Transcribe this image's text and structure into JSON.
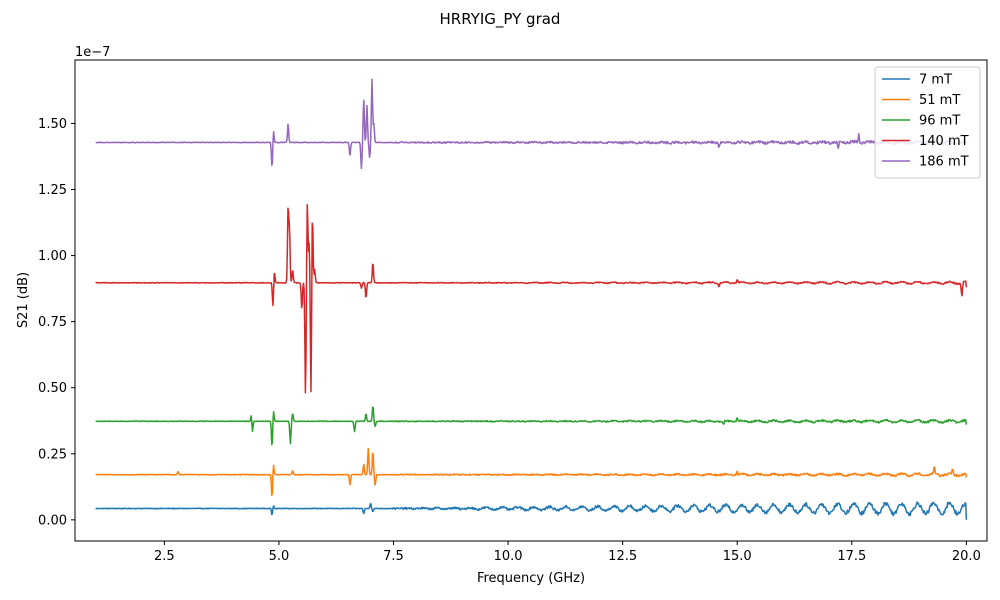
{
  "chart_data": {
    "type": "line",
    "title": "HRRYIG_PY grad",
    "xlabel": "Frequency (GHz)",
    "ylabel": "S21 (dB)",
    "y_offset_text": "1e−7",
    "y_scale": 1e-07,
    "xlim": [
      0.55,
      20.45
    ],
    "ylim": [
      -0.08,
      1.74
    ],
    "xticks": [
      2.5,
      5.0,
      7.5,
      10.0,
      12.5,
      15.0,
      17.5,
      20.0
    ],
    "xtick_labels": [
      "2.5",
      "5.0",
      "7.5",
      "10.0",
      "12.5",
      "15.0",
      "17.5",
      "20.0"
    ],
    "yticks": [
      0.0,
      0.25,
      0.5,
      0.75,
      1.0,
      1.25,
      1.5
    ],
    "ytick_labels": [
      "0.00",
      "0.25",
      "0.50",
      "0.75",
      "1.00",
      "1.25",
      "1.50"
    ],
    "grid": false,
    "legend_position": "top-right",
    "x_range": [
      1.0,
      20.0
    ],
    "series": [
      {
        "name": "7 mT",
        "color": "#1f77b4",
        "baseline": 0.043,
        "features": [
          [
            4.85,
            -0.025
          ],
          [
            4.88,
            0.012
          ],
          [
            6.85,
            -0.02
          ],
          [
            7.0,
            0.02
          ],
          [
            7.05,
            -0.012
          ]
        ],
        "osc_start": 7.5,
        "osc_amp": 0.008,
        "osc_growth": 0.022,
        "end_value": 0.0
      },
      {
        "name": "51 mT",
        "color": "#ff7f0e",
        "baseline": 0.171,
        "features": [
          [
            2.8,
            0.012
          ],
          [
            4.85,
            -0.09
          ],
          [
            4.88,
            0.04
          ],
          [
            5.3,
            0.015
          ],
          [
            6.55,
            -0.04
          ],
          [
            6.85,
            0.04
          ],
          [
            6.95,
            0.1
          ],
          [
            7.05,
            0.09
          ],
          [
            7.1,
            -0.04
          ],
          [
            15.0,
            0.012
          ],
          [
            19.3,
            0.025
          ],
          [
            19.7,
            0.02
          ]
        ],
        "osc_start": 7.5,
        "osc_amp": 0.004,
        "osc_growth": 0.004,
        "end_value": 0.16
      },
      {
        "name": "96 mT",
        "color": "#2ca02c",
        "baseline": 0.373,
        "features": [
          [
            4.4,
            0.03
          ],
          [
            4.42,
            -0.045
          ],
          [
            4.85,
            -0.1
          ],
          [
            4.88,
            0.04
          ],
          [
            5.25,
            -0.085
          ],
          [
            5.3,
            0.03
          ],
          [
            6.65,
            -0.04
          ],
          [
            6.9,
            0.03
          ],
          [
            7.05,
            0.06
          ],
          [
            7.1,
            -0.02
          ],
          [
            15.0,
            0.015
          ],
          [
            14.7,
            -0.015
          ]
        ],
        "osc_start": 7.5,
        "osc_amp": 0.004,
        "osc_growth": 0.004,
        "end_value": 0.36
      },
      {
        "name": "140 mT",
        "color": "#d62728",
        "baseline": 0.897,
        "features": [
          [
            4.87,
            -0.09
          ],
          [
            4.9,
            0.045
          ],
          [
            5.2,
            0.285
          ],
          [
            5.23,
            0.2
          ],
          [
            5.3,
            0.05
          ],
          [
            5.5,
            -0.1
          ],
          [
            5.58,
            -0.43
          ],
          [
            5.62,
            0.305
          ],
          [
            5.66,
            0.15
          ],
          [
            5.7,
            -0.43
          ],
          [
            5.73,
            0.29
          ],
          [
            5.78,
            0.05
          ],
          [
            6.8,
            -0.02
          ],
          [
            6.9,
            -0.06
          ],
          [
            7.05,
            0.08
          ],
          [
            15.0,
            0.012
          ],
          [
            14.6,
            -0.012
          ],
          [
            19.9,
            -0.05
          ]
        ],
        "osc_start": 7.5,
        "osc_amp": 0.003,
        "osc_growth": 0.004,
        "end_value": 0.88
      },
      {
        "name": "186 mT",
        "color": "#9467bd",
        "baseline": 1.428,
        "features": [
          [
            4.85,
            -0.1
          ],
          [
            4.88,
            0.045
          ],
          [
            5.2,
            0.07
          ],
          [
            6.55,
            -0.05
          ],
          [
            6.8,
            -0.1
          ],
          [
            6.85,
            0.165
          ],
          [
            6.92,
            0.14
          ],
          [
            6.98,
            -0.06
          ],
          [
            7.03,
            0.24
          ],
          [
            7.07,
            0.07
          ],
          [
            14.6,
            -0.02
          ],
          [
            17.2,
            -0.03
          ],
          [
            17.65,
            0.03
          ]
        ],
        "osc_start": 7.5,
        "osc_amp": 0.006,
        "osc_growth": 0.004,
        "end_value": 1.43
      }
    ]
  }
}
